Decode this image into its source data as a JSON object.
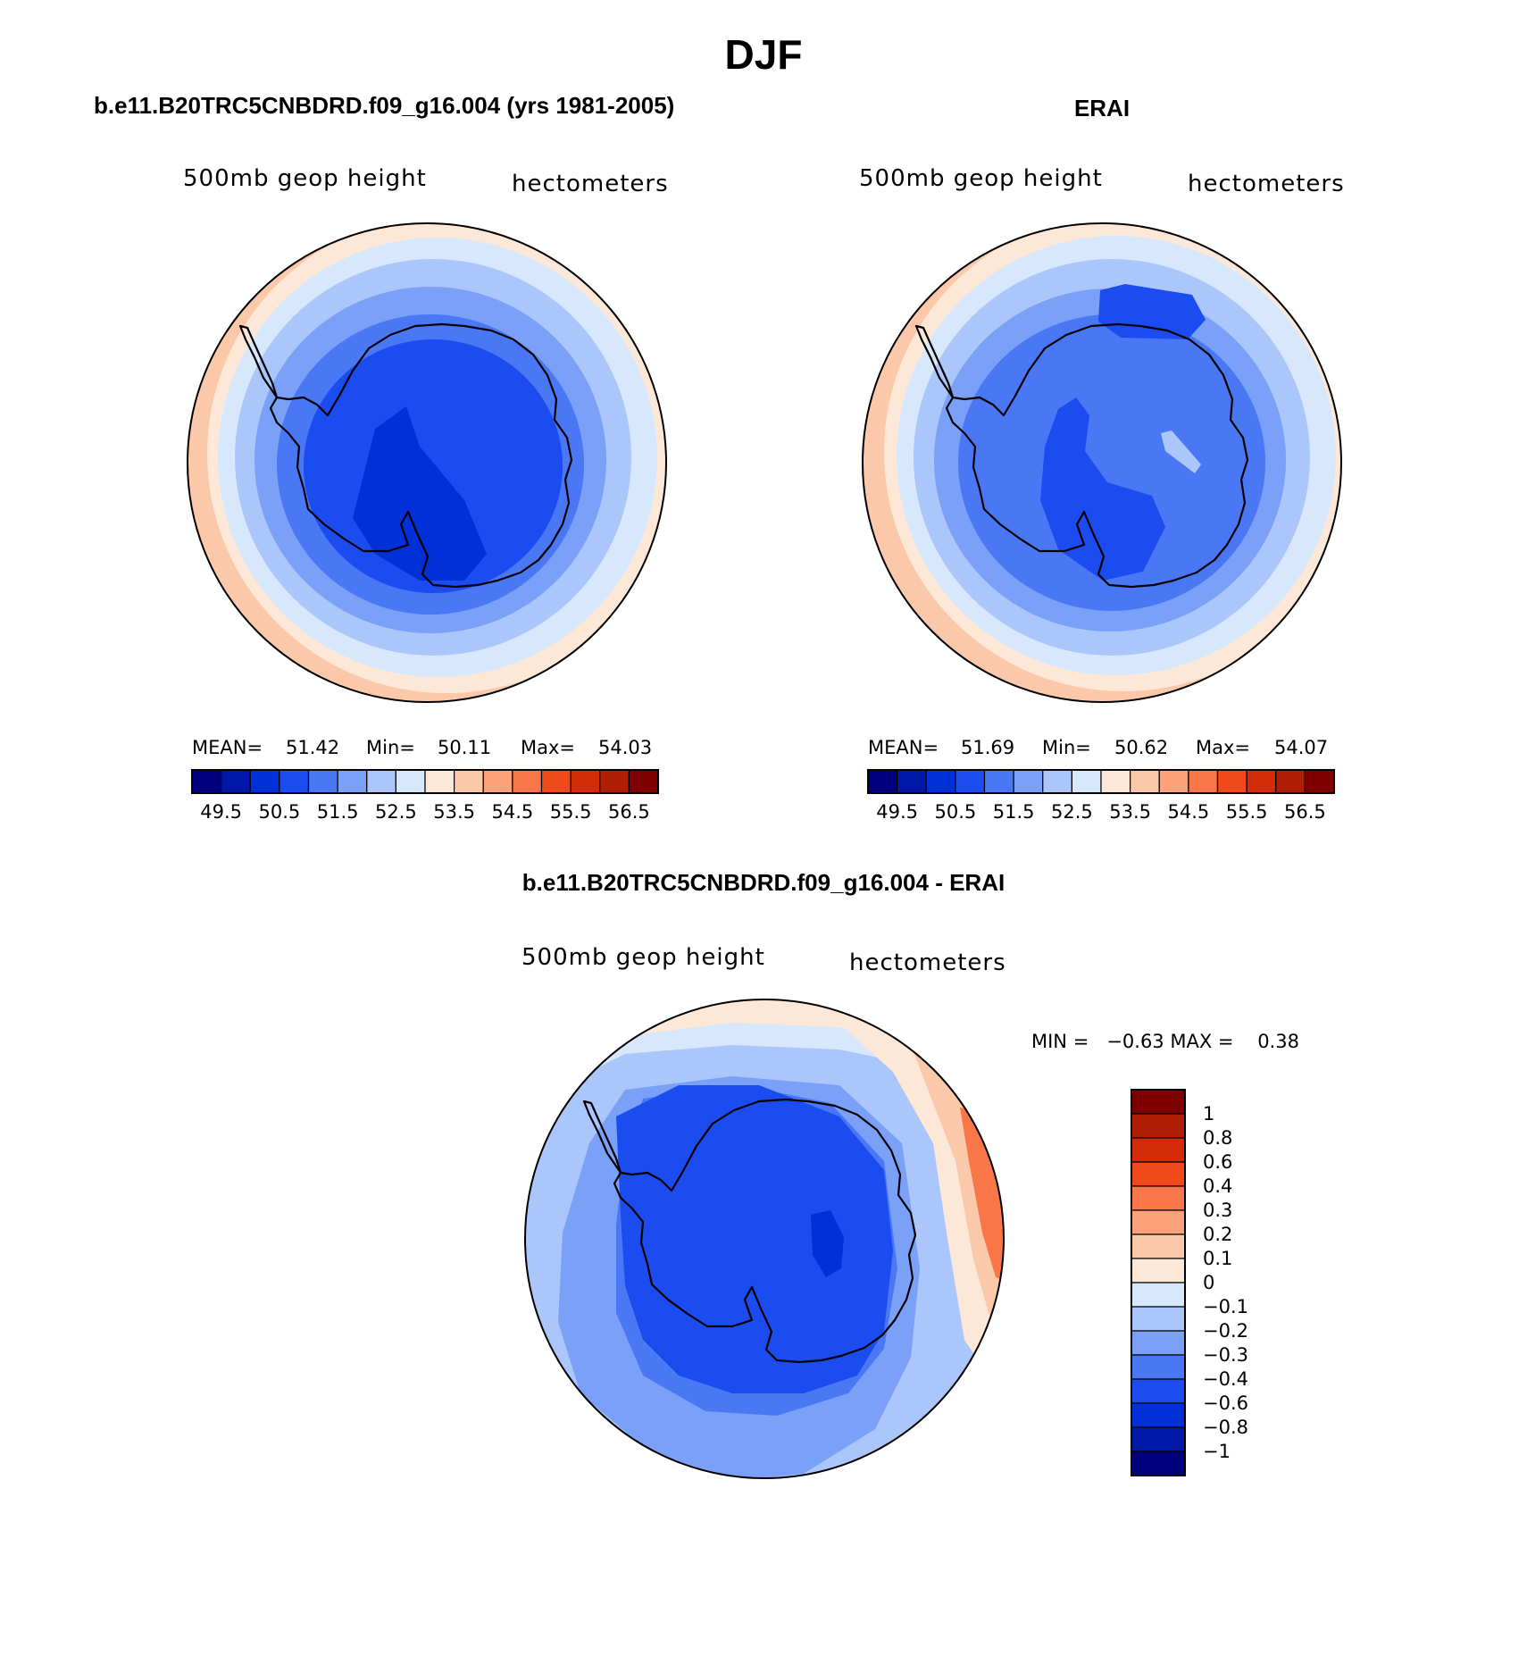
{
  "figure_title": "DJF",
  "palette": [
    "#00007f",
    "#0018a8",
    "#0030d8",
    "#1a4cf0",
    "#4a78f5",
    "#7aa0f7",
    "#aac6fb",
    "#d8e8fc",
    "#fde8d8",
    "#fcc8aa",
    "#fba27a",
    "#f87648",
    "#f04a1a",
    "#d42c08",
    "#b01e04",
    "#7f0000"
  ],
  "panels": [
    {
      "heading": "b.e11.B20TRC5CNBDRD.f09_g16.004 (yrs 1981-2005)",
      "variable": "500mb geop height",
      "units": "hectometers",
      "stats": {
        "mean_label": "MEAN=",
        "mean": "51.42",
        "min_label": "Min=",
        "min": "50.11",
        "max_label": "Max=",
        "max": "54.03"
      },
      "colorbar_ticks": [
        "49.5",
        "50.5",
        "51.5",
        "52.5",
        "53.5",
        "54.5",
        "55.5",
        "56.5"
      ]
    },
    {
      "heading": "ERAI",
      "variable": "500mb geop height",
      "units": "hectometers",
      "stats": {
        "mean_label": "MEAN=",
        "mean": "51.69",
        "min_label": "Min=",
        "min": "50.62",
        "max_label": "Max=",
        "max": "54.07"
      },
      "colorbar_ticks": [
        "49.5",
        "50.5",
        "51.5",
        "52.5",
        "53.5",
        "54.5",
        "55.5",
        "56.5"
      ]
    },
    {
      "heading": "b.e11.B20TRC5CNBDRD.f09_g16.004 - ERAI",
      "variable": "500mb geop height",
      "units": "hectometers",
      "minmax_text": "MIN =   −0.63 MAX =    0.38",
      "colorbar_labels": [
        "1",
        "0.8",
        "0.6",
        "0.4",
        "0.3",
        "0.2",
        "0.1",
        "0",
        "−0.1",
        "−0.2",
        "−0.3",
        "−0.4",
        "−0.6",
        "−0.8",
        "−1"
      ],
      "colorbar_colors": [
        "#7f0000",
        "#b01e04",
        "#d42c08",
        "#f04a1a",
        "#f87648",
        "#fba27a",
        "#fcc8aa",
        "#fde8d8",
        "#d8e8fc",
        "#aac6fb",
        "#7aa0f7",
        "#4a78f5",
        "#1a4cf0",
        "#0030d8",
        "#0018a8",
        "#00007f"
      ]
    }
  ]
}
